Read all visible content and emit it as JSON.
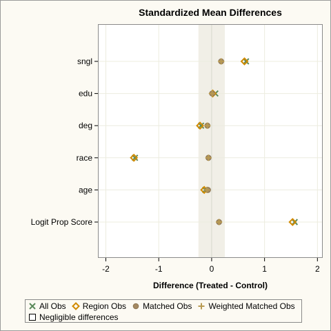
{
  "chart_data": {
    "type": "scatter",
    "title": "Standardized Mean Differences",
    "xlabel": "Difference (Treated - Control)",
    "ylabel": "",
    "xlim": [
      -2.15,
      2.1
    ],
    "x_ticks": [
      -2,
      -1,
      0,
      1,
      2
    ],
    "categories": [
      "sngl",
      "edu",
      "deg",
      "race",
      "age",
      "Logit Prop Score"
    ],
    "negligible_band": [
      -0.25,
      0.25
    ],
    "grid": true,
    "legend_position": "bottom",
    "series": [
      {
        "name": "All Obs",
        "marker": "x",
        "color": "#5b8a5b",
        "values": [
          0.65,
          0.07,
          -0.2,
          -1.45,
          -0.12,
          1.57
        ]
      },
      {
        "name": "Region Obs",
        "marker": "diamond",
        "color": "#d18a00",
        "values": [
          0.62,
          0.02,
          -0.22,
          -1.47,
          -0.14,
          1.53
        ]
      },
      {
        "name": "Matched Obs",
        "marker": "circle",
        "color": "#a58a63",
        "values": [
          0.18,
          0.01,
          -0.08,
          -0.06,
          -0.07,
          0.14
        ]
      },
      {
        "name": "Weighted Matched Obs",
        "marker": "plus",
        "color": "#b89a52",
        "values": [
          0.18,
          0.01,
          -0.08,
          -0.06,
          -0.09,
          0.14
        ]
      }
    ],
    "negligible_label": "Negligible differences"
  }
}
